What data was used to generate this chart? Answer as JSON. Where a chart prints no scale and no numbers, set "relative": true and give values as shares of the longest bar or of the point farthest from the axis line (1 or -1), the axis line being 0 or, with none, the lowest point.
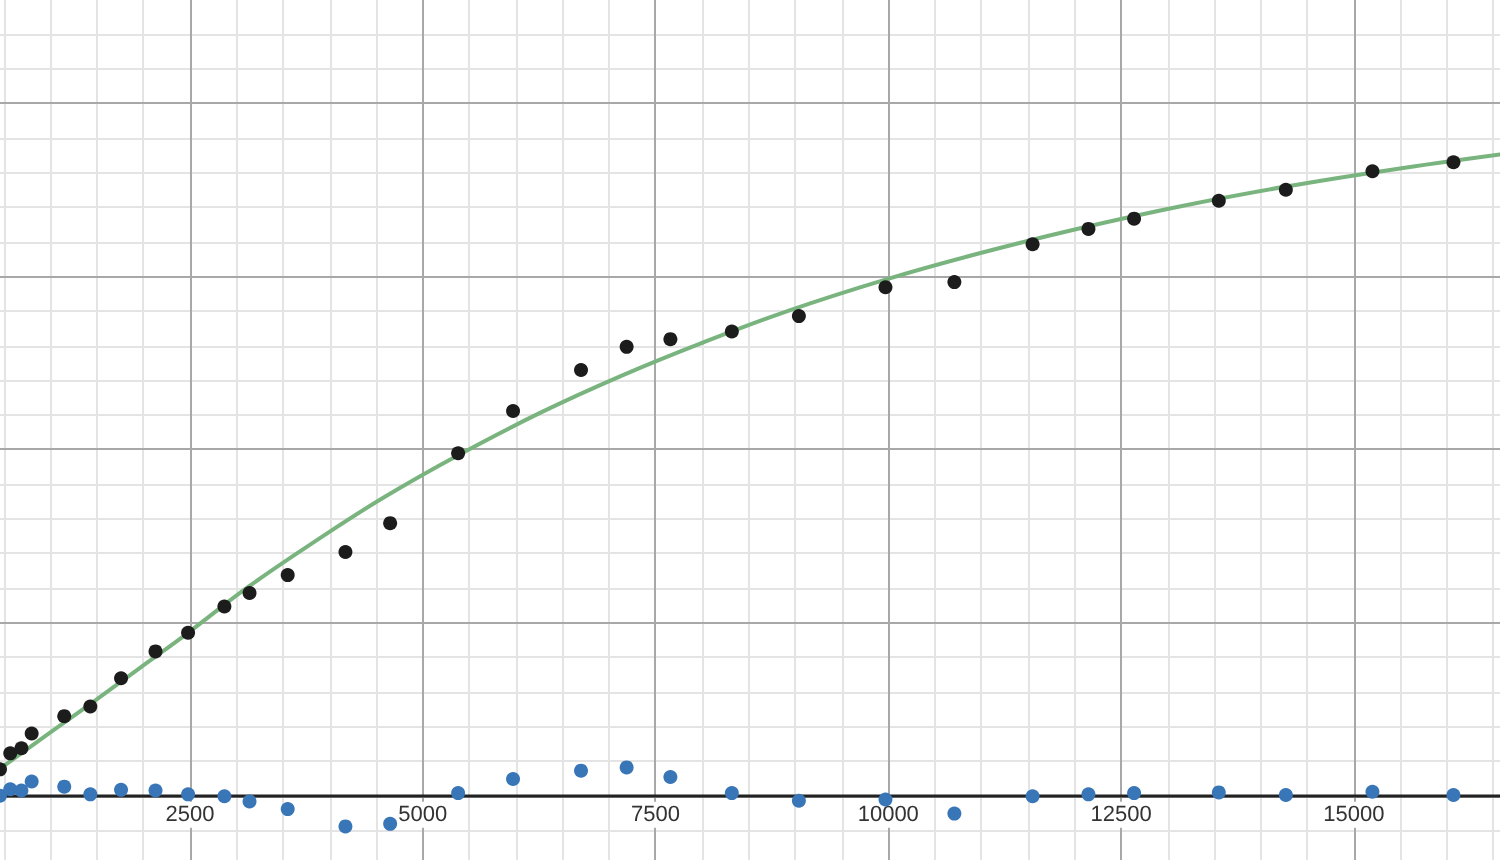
{
  "chart_data": {
    "type": "scatter",
    "relative": true,
    "marker": "circle",
    "grid": true,
    "tick_labels": "x",
    "x": [
      460,
      570,
      690,
      800,
      1150,
      1430,
      1760,
      2130,
      2480,
      2870,
      3140,
      3550,
      4170,
      4650,
      5380,
      5970,
      6700,
      7190,
      7660,
      8320,
      9040,
      9970,
      10710,
      11550,
      12150,
      12640,
      13550,
      14270,
      15200,
      16070
    ],
    "series": [
      {
        "color": "#1c1c1c",
        "values": [
          0.041,
          0.066,
          0.074,
          0.097,
          0.124,
          0.139,
          0.183,
          0.225,
          0.254,
          0.295,
          0.316,
          0.344,
          0.38,
          0.425,
          0.534,
          0.6,
          0.664,
          0.7,
          0.712,
          0.724,
          0.748,
          0.793,
          0.801,
          0.86,
          0.884,
          0.9,
          0.928,
          0.945,
          0.974,
          0.988
        ]
      },
      {
        "color": "#3876b8",
        "values": [
          0,
          0.01,
          0.008,
          0.022,
          0.014,
          0.002,
          0.009,
          0.008,
          0.002,
          -0.001,
          -0.009,
          -0.021,
          -0.048,
          -0.044,
          0.004,
          0.026,
          0.039,
          0.044,
          0.029,
          0.004,
          -0.008,
          -0.006,
          -0.028,
          -0.001,
          0.002,
          0.004,
          0.005,
          0.001,
          0.006,
          0.001
        ]
      },
      {
        "type": "line",
        "marker": "none",
        "color": "#79b47f",
        "x": [
          460,
          975,
          1470,
          1960,
          2480,
          3140,
          3900,
          4580,
          5380,
          6260,
          7120,
          7980,
          8940,
          9970,
          10980,
          12060,
          13130,
          14270,
          15390,
          16570
        ],
        "values": [
          0.042,
          0.096,
          0.147,
          0.199,
          0.254,
          0.327,
          0.402,
          0.465,
          0.531,
          0.597,
          0.654,
          0.705,
          0.757,
          0.805,
          0.846,
          0.885,
          0.919,
          0.95,
          0.976,
          1
        ]
      }
    ],
    "xlim": [
      460,
      16570
    ],
    "xticks": [
      2500,
      5000,
      7500,
      10000,
      12500,
      15000
    ]
  }
}
